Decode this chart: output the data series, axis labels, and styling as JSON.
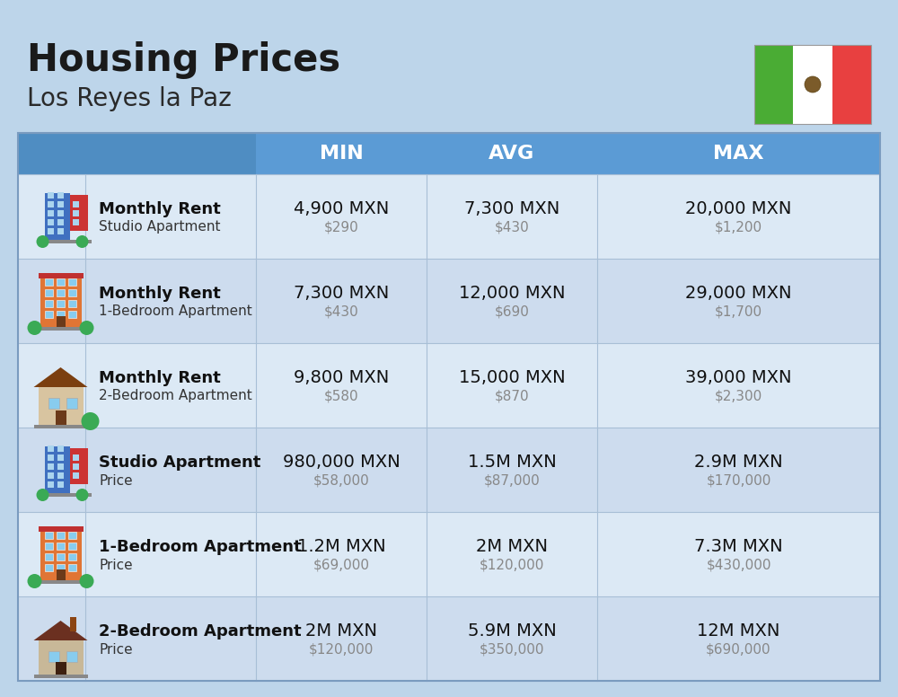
{
  "title": "Housing Prices",
  "subtitle": "Los Reyes la Paz",
  "bg_color": "#bdd5ea",
  "header_bg": "#5b9bd5",
  "header_text_color": "#ffffff",
  "row_bg_even": "#dce9f5",
  "row_bg_odd": "#cddcee",
  "divider_color": "#a8bfd6",
  "flag_green": "#4aac34",
  "flag_white": "#ffffff",
  "flag_red": "#e84040",
  "col_headers": [
    "MIN",
    "AVG",
    "MAX"
  ],
  "rows": [
    {
      "bold_label": "Monthly Rent",
      "sub_label": "Studio Apartment",
      "icon": "studio_blue",
      "min_main": "4,900 MXN",
      "min_sub": "$290",
      "avg_main": "7,300 MXN",
      "avg_sub": "$430",
      "max_main": "20,000 MXN",
      "max_sub": "$1,200"
    },
    {
      "bold_label": "Monthly Rent",
      "sub_label": "1-Bedroom Apartment",
      "icon": "apartment_orange",
      "min_main": "7,300 MXN",
      "min_sub": "$430",
      "avg_main": "12,000 MXN",
      "avg_sub": "$690",
      "max_main": "29,000 MXN",
      "max_sub": "$1,700"
    },
    {
      "bold_label": "Monthly Rent",
      "sub_label": "2-Bedroom Apartment",
      "icon": "house_beige",
      "min_main": "9,800 MXN",
      "min_sub": "$580",
      "avg_main": "15,000 MXN",
      "avg_sub": "$870",
      "max_main": "39,000 MXN",
      "max_sub": "$2,300"
    },
    {
      "bold_label": "Studio Apartment",
      "sub_label": "Price",
      "icon": "studio_blue",
      "min_main": "980,000 MXN",
      "min_sub": "$58,000",
      "avg_main": "1.5M MXN",
      "avg_sub": "$87,000",
      "max_main": "2.9M MXN",
      "max_sub": "$170,000"
    },
    {
      "bold_label": "1-Bedroom Apartment",
      "sub_label": "Price",
      "icon": "apartment_orange",
      "min_main": "1.2M MXN",
      "min_sub": "$69,000",
      "avg_main": "2M MXN",
      "avg_sub": "$120,000",
      "max_main": "7.3M MXN",
      "max_sub": "$430,000"
    },
    {
      "bold_label": "2-Bedroom Apartment",
      "sub_label": "Price",
      "icon": "house_brown",
      "min_main": "2M MXN",
      "min_sub": "$120,000",
      "avg_main": "5.9M MXN",
      "avg_sub": "$350,000",
      "max_main": "12M MXN",
      "max_sub": "$690,000"
    }
  ]
}
